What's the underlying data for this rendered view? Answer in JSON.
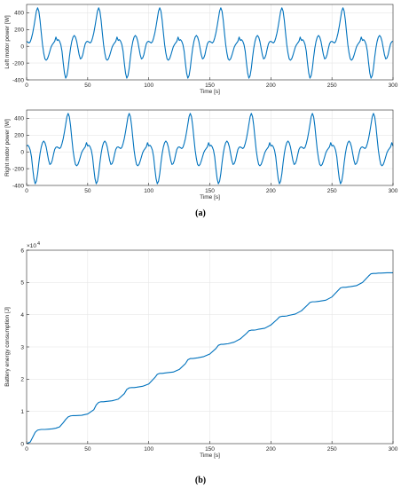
{
  "figure": {
    "captions": [
      "(a)",
      "(b)"
    ],
    "line_color": "#0072BD",
    "grid_color": "#e6e6e6",
    "axis_color": "#262626"
  },
  "chart_data": [
    {
      "type": "line",
      "title": "",
      "xlabel": "Time [s]",
      "ylabel": "Left motor power [W]",
      "xlim": [
        0,
        300
      ],
      "ylim": [
        -400,
        500
      ],
      "xticks": [
        0,
        50,
        100,
        150,
        200,
        250,
        300
      ],
      "yticks": [
        -400,
        -200,
        0,
        200,
        400
      ],
      "grid": true,
      "period": 50,
      "phase": 0,
      "cycle_shape": {
        "x": [
          0,
          1,
          2,
          3,
          4,
          5,
          6,
          7,
          8,
          9,
          10,
          11,
          12,
          13,
          14,
          15,
          16,
          17,
          18,
          19,
          20,
          21,
          22,
          23,
          24,
          25,
          26,
          27,
          28,
          29,
          30,
          31,
          32,
          33,
          34,
          35,
          36,
          37,
          38,
          39,
          40,
          41,
          42,
          43,
          44,
          45,
          46,
          47,
          48,
          49,
          50
        ],
        "y": [
          60,
          50,
          40,
          55,
          100,
          160,
          240,
          330,
          420,
          460,
          420,
          310,
          160,
          20,
          -80,
          -150,
          -165,
          -150,
          -110,
          -60,
          -10,
          20,
          40,
          60,
          110,
          70,
          80,
          60,
          20,
          -60,
          -200,
          -320,
          -380,
          -350,
          -260,
          -130,
          -20,
          60,
          110,
          130,
          110,
          60,
          -20,
          -100,
          -150,
          -140,
          -100,
          -30,
          30,
          55,
          60
        ]
      }
    },
    {
      "type": "line",
      "title": "",
      "xlabel": "Time [s]",
      "ylabel": "Right motor power [W]",
      "xlim": [
        0,
        300
      ],
      "ylim": [
        -400,
        500
      ],
      "xticks": [
        0,
        50,
        100,
        150,
        200,
        250,
        300
      ],
      "yticks": [
        -400,
        -200,
        0,
        200,
        400
      ],
      "grid": true,
      "period": 50,
      "phase": 25,
      "cycle_shape": {
        "x": [
          0,
          1,
          2,
          3,
          4,
          5,
          6,
          7,
          8,
          9,
          10,
          11,
          12,
          13,
          14,
          15,
          16,
          17,
          18,
          19,
          20,
          21,
          22,
          23,
          24,
          25,
          26,
          27,
          28,
          29,
          30,
          31,
          32,
          33,
          34,
          35,
          36,
          37,
          38,
          39,
          40,
          41,
          42,
          43,
          44,
          45,
          46,
          47,
          48,
          49,
          50
        ],
        "y": [
          60,
          50,
          40,
          55,
          100,
          160,
          240,
          330,
          420,
          460,
          420,
          310,
          160,
          20,
          -80,
          -150,
          -165,
          -150,
          -110,
          -60,
          -10,
          20,
          40,
          60,
          110,
          70,
          80,
          60,
          20,
          -60,
          -200,
          -320,
          -380,
          -350,
          -260,
          -130,
          -20,
          60,
          110,
          130,
          110,
          60,
          -20,
          -100,
          -150,
          -140,
          -100,
          -30,
          30,
          55,
          60
        ]
      }
    },
    {
      "type": "line",
      "title": "",
      "xlabel": "Time [s]",
      "ylabel": "Battery energy consumption [J]",
      "xlim": [
        0,
        300
      ],
      "ylim": [
        0,
        6
      ],
      "y_multiplier_label": "×10",
      "y_multiplier_exponent": "4",
      "xticks": [
        0,
        50,
        100,
        150,
        200,
        250,
        300
      ],
      "yticks": [
        0,
        1,
        2,
        3,
        4,
        5,
        6
      ],
      "grid": true,
      "steps": {
        "x": [
          0,
          3,
          5,
          7,
          9,
          12,
          15,
          18,
          21,
          24,
          27,
          30,
          32,
          34,
          36,
          38,
          40,
          45,
          50,
          55,
          57,
          59,
          61,
          63,
          65,
          70,
          75,
          80,
          82,
          84,
          86,
          88,
          90,
          95,
          100,
          105,
          107,
          109,
          111,
          113,
          115,
          120,
          125,
          130,
          132,
          134,
          136,
          138,
          140,
          145,
          150,
          155,
          157,
          159,
          161,
          163,
          165,
          170,
          175,
          180,
          182,
          184,
          186,
          188,
          190,
          195,
          200,
          205,
          207,
          209,
          211,
          213,
          215,
          220,
          225,
          230,
          232,
          234,
          236,
          238,
          240,
          245,
          250,
          255,
          257,
          259,
          261,
          263,
          265,
          270,
          275,
          280,
          282,
          284,
          286,
          288,
          290,
          295,
          300
        ],
        "y": [
          0,
          0.05,
          0.2,
          0.35,
          0.42,
          0.44,
          0.44,
          0.45,
          0.46,
          0.48,
          0.52,
          0.65,
          0.75,
          0.83,
          0.86,
          0.87,
          0.87,
          0.88,
          0.92,
          1.05,
          1.2,
          1.28,
          1.3,
          1.3,
          1.31,
          1.33,
          1.38,
          1.55,
          1.68,
          1.73,
          1.74,
          1.74,
          1.75,
          1.78,
          1.85,
          2.05,
          2.15,
          2.18,
          2.18,
          2.19,
          2.2,
          2.22,
          2.3,
          2.48,
          2.6,
          2.64,
          2.64,
          2.65,
          2.66,
          2.7,
          2.78,
          2.95,
          3.05,
          3.08,
          3.08,
          3.09,
          3.1,
          3.15,
          3.25,
          3.42,
          3.5,
          3.52,
          3.52,
          3.53,
          3.55,
          3.58,
          3.68,
          3.85,
          3.93,
          3.95,
          3.95,
          3.96,
          3.98,
          4.02,
          4.12,
          4.3,
          4.38,
          4.4,
          4.4,
          4.41,
          4.42,
          4.45,
          4.55,
          4.75,
          4.83,
          4.85,
          4.85,
          4.86,
          4.87,
          4.9,
          5.0,
          5.2,
          5.27,
          5.28,
          5.28,
          5.29,
          5.29,
          5.3,
          5.3
        ]
      }
    }
  ]
}
